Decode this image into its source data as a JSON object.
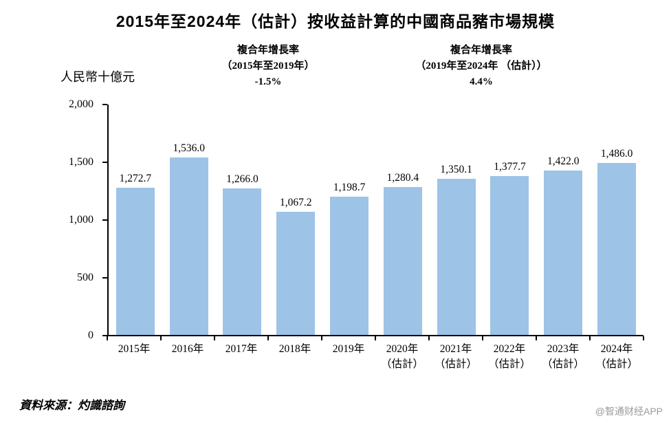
{
  "chart_data": {
    "type": "bar",
    "title": "2015年至2024年（估計）按收益計算的中國商品豬市場規模",
    "ylabel": "人民幣十億元",
    "xlabel": "",
    "ylim": [
      0,
      2000
    ],
    "ytick_labels": [
      "2,000",
      "1,500",
      "1,000",
      "500",
      "0"
    ],
    "grid": false,
    "legend": "none",
    "bar_color": "#9dc3e6",
    "categories": [
      "2015年",
      "2016年",
      "2017年",
      "2018年",
      "2019年",
      "2020年",
      "2021年",
      "2022年",
      "2023年",
      "2024年"
    ],
    "sublabels": [
      "",
      "",
      "",
      "",
      "",
      "（估計）",
      "（估計）",
      "（估計）",
      "（估計）",
      "（估計）"
    ],
    "values": [
      1272.7,
      1536.0,
      1266.0,
      1067.2,
      1198.7,
      1280.4,
      1350.1,
      1377.7,
      1422.0,
      1486.0
    ],
    "value_labels": [
      "1,272.7",
      "1,536.0",
      "1,266.0",
      "1,067.2",
      "1,198.7",
      "1,280.4",
      "1,350.1",
      "1,377.7",
      "1,422.0",
      "1,486.0"
    ],
    "annotations": [
      {
        "line1": "複合年增長率",
        "line2": "（2015年至2019年）",
        "value": "-1.5%"
      },
      {
        "line1": "複合年增長率",
        "line2": "（2019年至2024年 （估計））",
        "value": "4.4%"
      }
    ]
  },
  "source": "資料來源：灼識諮詢",
  "watermark": "@智通财经APP"
}
